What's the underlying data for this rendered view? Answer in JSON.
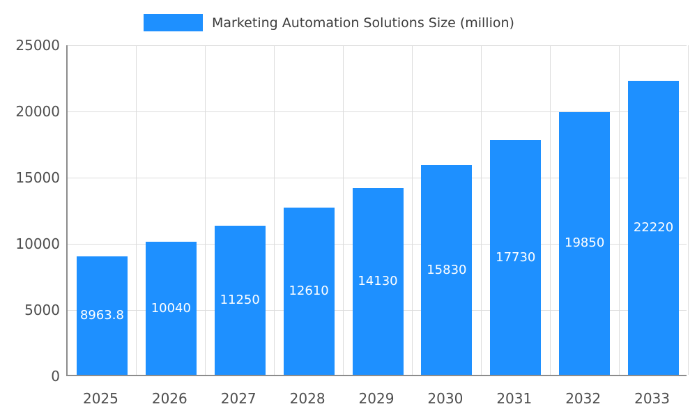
{
  "chart_data": {
    "type": "bar",
    "title": "Marketing Automation Solutions Size (million)",
    "categories": [
      "2025",
      "2026",
      "2027",
      "2028",
      "2029",
      "2030",
      "2031",
      "2032",
      "2033"
    ],
    "values": [
      8963.8,
      10040,
      11250,
      12610,
      14130,
      15830,
      17730,
      19850,
      22220
    ],
    "value_labels": [
      "8963.8",
      "10040",
      "11250",
      "12610",
      "14130",
      "15830",
      "17730",
      "19850",
      "22220"
    ],
    "xlabel": "",
    "ylabel": "",
    "ylim": [
      0,
      25000
    ],
    "yticks": [
      0,
      5000,
      10000,
      15000,
      20000,
      25000
    ],
    "grid": true,
    "legend_position": "top",
    "bar_color": "#1E90FF",
    "value_label_color": "#ffffff",
    "axis_line_color": "#8c8c8c",
    "gridline_color": "#dcdcdc",
    "tick_label_color": "#4d4d4d"
  }
}
